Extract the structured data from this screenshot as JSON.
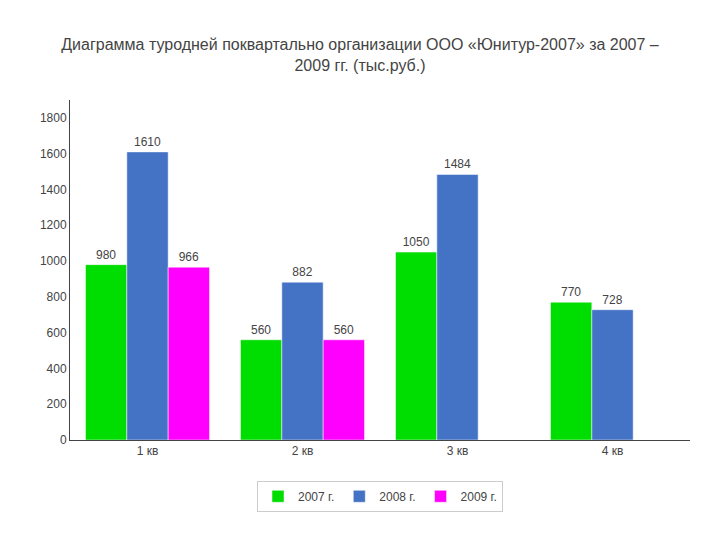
{
  "chart_data": {
    "type": "bar",
    "title": "Диаграмма туродней поквартально организации ООО «Юнитур-2007» за 2007 –\n2009 гг. (тыс.руб.)",
    "categories": [
      "1 кв",
      "2 кв",
      "3 кв",
      "4 кв"
    ],
    "series": [
      {
        "name": "2007 г.",
        "color": "#00DD00",
        "values": [
          980,
          560,
          1050,
          770
        ]
      },
      {
        "name": "2008 г.",
        "color": "#4472C4",
        "values": [
          1610,
          882,
          1484,
          728
        ]
      },
      {
        "name": "2009 г.",
        "color": "#FF00FF",
        "values": [
          966,
          560,
          null,
          null
        ]
      }
    ],
    "ylim": [
      0,
      1900
    ],
    "yticks": [
      0,
      200,
      400,
      600,
      800,
      1000,
      1200,
      1400,
      1600,
      1800
    ],
    "grid": false,
    "legend": "bottom",
    "data_labels": true
  }
}
